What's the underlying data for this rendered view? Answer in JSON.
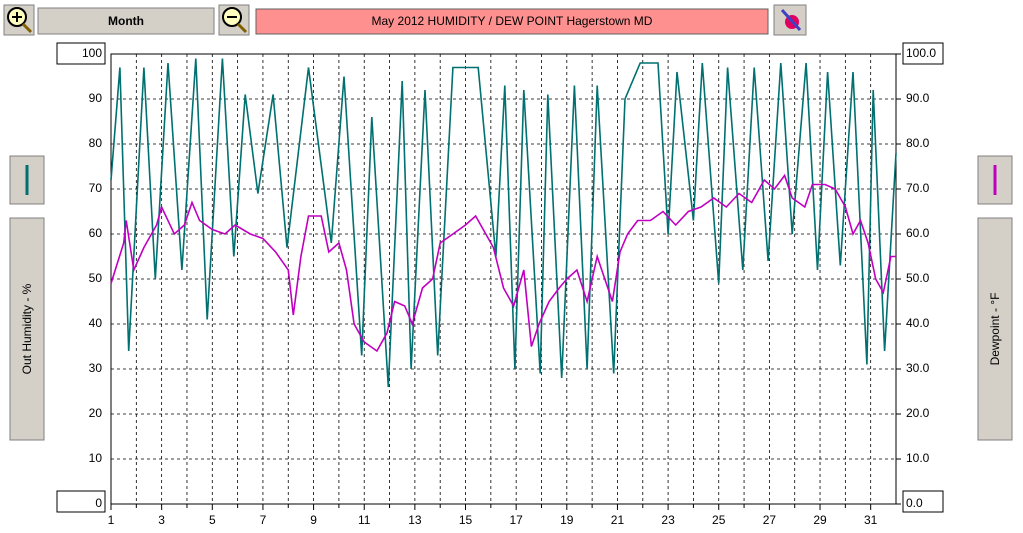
{
  "toolbar": {
    "period": "Month"
  },
  "chart_data": {
    "type": "line",
    "title": "May  2012  HUMIDITY / DEW POINT  Hagerstown MD",
    "xlim": [
      1,
      32
    ],
    "xticks": [
      1,
      3,
      5,
      7,
      9,
      11,
      13,
      15,
      17,
      19,
      21,
      23,
      25,
      27,
      29,
      31
    ],
    "xminorticks": [
      2,
      4,
      6,
      8,
      10,
      12,
      14,
      16,
      18,
      20,
      22,
      24,
      26,
      28,
      30
    ],
    "ylim": [
      0,
      100
    ],
    "yticks": [
      0,
      10,
      20,
      30,
      40,
      50,
      60,
      70,
      80,
      90,
      100
    ],
    "y2lim": [
      0,
      100
    ],
    "y2ticks": [
      {
        "value": 0,
        "label": "0.0"
      },
      {
        "value": 10,
        "label": "10.0"
      },
      {
        "value": 20,
        "label": "20.0"
      },
      {
        "value": 30,
        "label": "30.0"
      },
      {
        "value": 40,
        "label": "40.0"
      },
      {
        "value": 50,
        "label": "50.0"
      },
      {
        "value": 60,
        "label": "60.0"
      },
      {
        "value": 70,
        "label": "70.0"
      },
      {
        "value": 80,
        "label": "80.0"
      },
      {
        "value": 90,
        "label": "90.0"
      },
      {
        "value": 100,
        "label": "100.0"
      }
    ],
    "grid": true,
    "series": [
      {
        "name": "Out Humidity - %",
        "color": "#007070",
        "x": [
          1.0,
          1.35,
          1.7,
          2.3,
          2.75,
          3.25,
          3.8,
          4.35,
          4.8,
          5.4,
          5.85,
          6.3,
          6.8,
          7.4,
          7.95,
          8.8,
          9.7,
          10.2,
          10.9,
          11.3,
          11.95,
          12.5,
          12.85,
          13.4,
          13.9,
          14.5,
          15.5,
          16.2,
          16.55,
          16.95,
          17.3,
          17.95,
          18.25,
          18.8,
          19.3,
          19.8,
          20.2,
          20.85,
          21.3,
          21.9,
          22.6,
          23.0,
          23.35,
          24.0,
          24.35,
          25.0,
          25.35,
          25.95,
          26.4,
          26.95,
          27.45,
          27.9,
          28.45,
          28.9,
          29.3,
          29.8,
          30.3,
          30.85,
          31.1,
          31.55,
          32.0
        ],
        "values": [
          72,
          97,
          34,
          97,
          50,
          98,
          52,
          99,
          41,
          99,
          55,
          91,
          69,
          91,
          57,
          97,
          58,
          95,
          33,
          86,
          26,
          94,
          30,
          92,
          33,
          97,
          97,
          55,
          93,
          30,
          92,
          29,
          91,
          28,
          93,
          30,
          93,
          29,
          90,
          98,
          98,
          60,
          96,
          63,
          98,
          49,
          97,
          52,
          97,
          54,
          98,
          60,
          98,
          52,
          96,
          53,
          96,
          31,
          92,
          34,
          78
        ]
      },
      {
        "name": "Dewpoint - °F",
        "color": "#c000c0",
        "axis": "y2",
        "x": [
          1.0,
          1.5,
          1.6,
          1.9,
          2.3,
          2.8,
          3.0,
          3.5,
          3.9,
          4.2,
          4.5,
          5.0,
          5.5,
          5.9,
          6.5,
          7.0,
          7.5,
          8.0,
          8.2,
          8.5,
          8.8,
          9.3,
          9.6,
          10.0,
          10.3,
          10.6,
          11.0,
          11.5,
          11.9,
          12.2,
          12.6,
          12.9,
          13.3,
          13.7,
          14.0,
          14.5,
          15.0,
          15.4,
          15.8,
          16.1,
          16.5,
          16.9,
          17.3,
          17.6,
          17.9,
          18.3,
          18.7,
          19.0,
          19.4,
          19.8,
          20.2,
          20.5,
          20.8,
          21.1,
          21.4,
          21.8,
          22.3,
          22.8,
          23.3,
          23.8,
          24.3,
          24.8,
          25.3,
          25.8,
          26.3,
          26.8,
          27.2,
          27.6,
          27.9,
          28.4,
          28.7,
          29.2,
          29.6,
          30.0,
          30.3,
          30.6,
          30.9,
          31.2,
          31.5,
          31.8,
          32.0
        ],
        "values": [
          49,
          58,
          63,
          52,
          57,
          62,
          66,
          60,
          62,
          67,
          63,
          61,
          60,
          62,
          60,
          59,
          56,
          52,
          42,
          55,
          64,
          64,
          56,
          58,
          52,
          40,
          36,
          34,
          38,
          45,
          44,
          40,
          48,
          50,
          58,
          60,
          62,
          64,
          60,
          57,
          48,
          44,
          52,
          35,
          40,
          45,
          48,
          50,
          52,
          45,
          55,
          50,
          45,
          56,
          60,
          63,
          63,
          65,
          62,
          65,
          66,
          68,
          66,
          69,
          67,
          72,
          70,
          73,
          68,
          66,
          71,
          71,
          70,
          66,
          60,
          63,
          58,
          50,
          47,
          55,
          55
        ]
      }
    ]
  }
}
